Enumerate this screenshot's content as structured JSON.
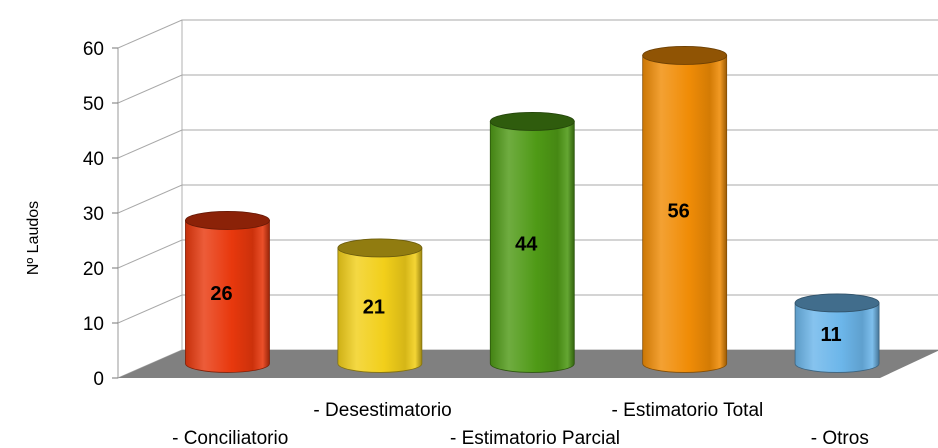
{
  "chart_data": {
    "type": "bar",
    "style": "3d-cylinder",
    "categories": [
      "- Conciliatorio",
      "- Desestimatorio",
      "- Estimatorio Parcial",
      "- Estimatorio Total",
      "- Otros"
    ],
    "values": [
      26,
      21,
      44,
      56,
      11
    ],
    "data_labels": [
      "26",
      "21",
      "44",
      "56",
      "11"
    ],
    "colors": [
      "#e8380d",
      "#f2cf1a",
      "#4f9a16",
      "#f08c06",
      "#6cb6ea"
    ],
    "title": "",
    "xlabel": "",
    "ylabel": "Nº Laudos",
    "ylim": [
      0,
      60
    ],
    "yticks": [
      "0",
      "10",
      "20",
      "30",
      "40",
      "50",
      "60"
    ],
    "grid": true,
    "legend": "none",
    "floor_color": "#808080"
  }
}
